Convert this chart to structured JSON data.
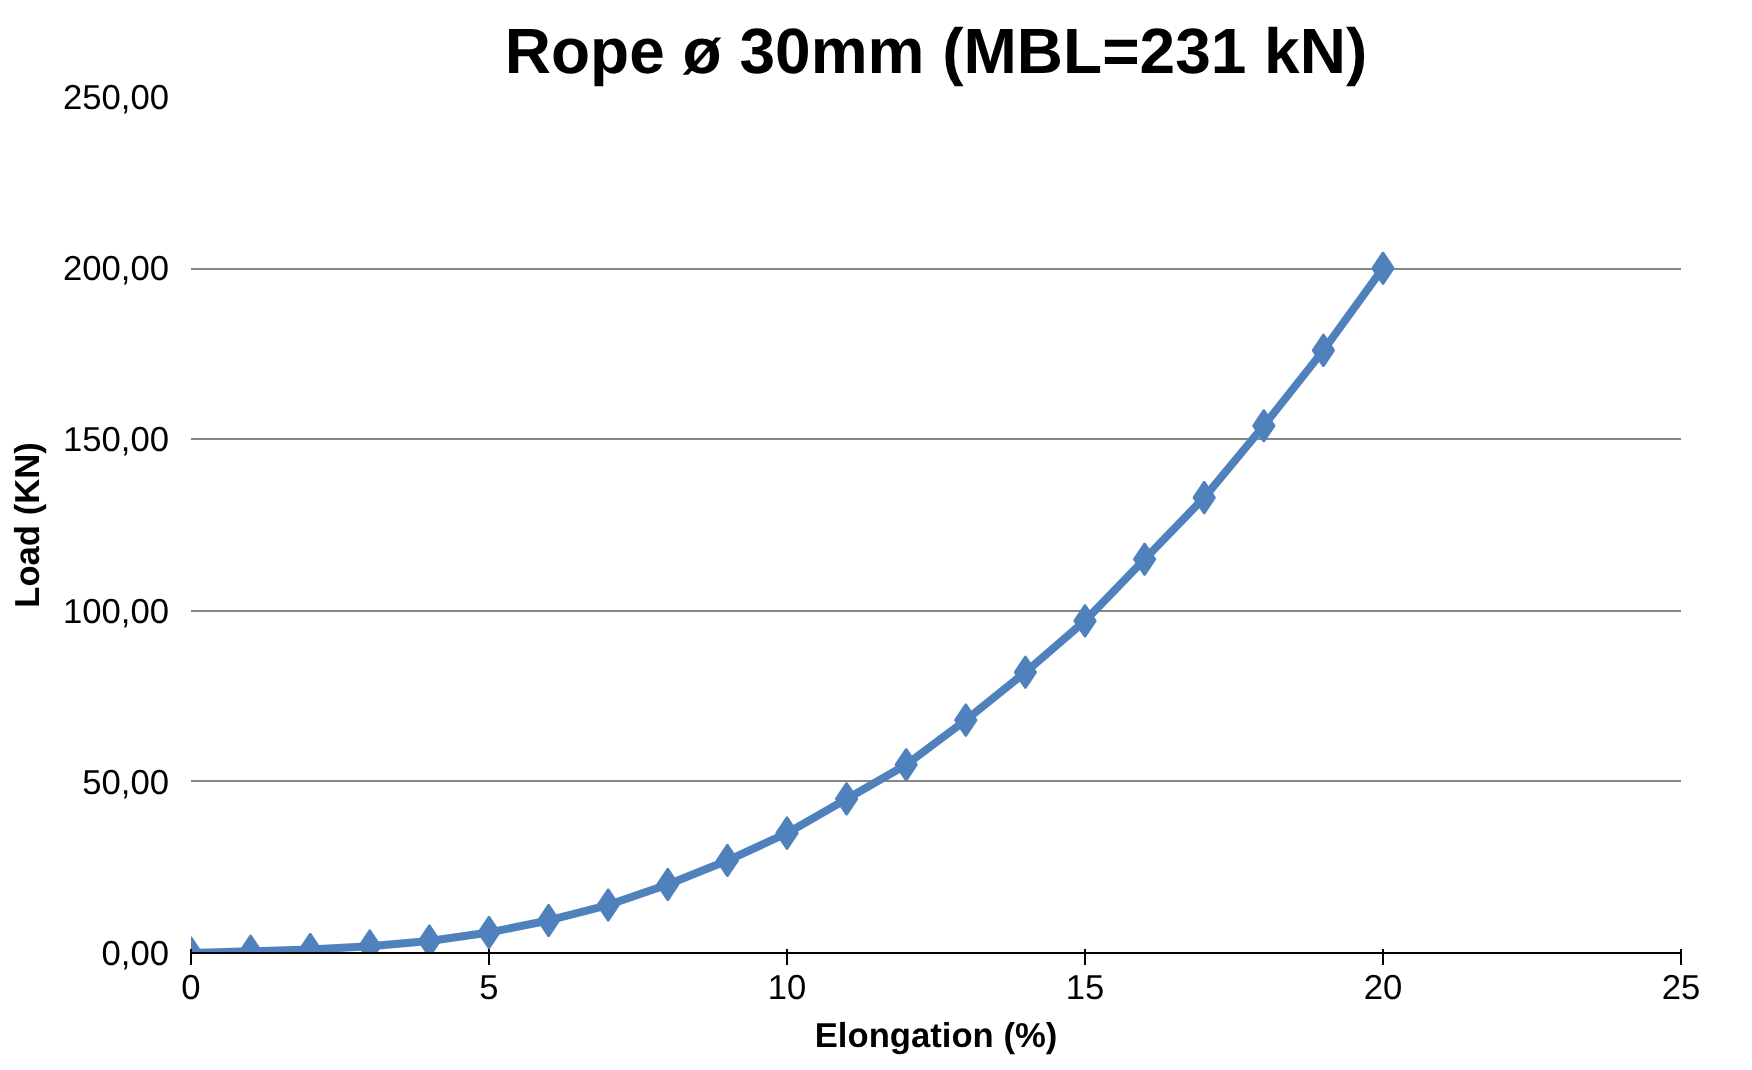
{
  "chart_data": {
    "type": "line",
    "title": "Rope ø 30mm (MBL=231 kN)",
    "xlabel": "Elongation (%)",
    "ylabel": "Load (KN)",
    "x": [
      0,
      1,
      2,
      3,
      4,
      5,
      6,
      7,
      8,
      9,
      10,
      11,
      12,
      13,
      14,
      15,
      16,
      17,
      18,
      19,
      20
    ],
    "series": [
      {
        "color": "#4f81bd",
        "values": [
          0,
          0.5,
          1,
          2,
          3.5,
          6,
          9.5,
          14,
          20,
          27,
          35,
          45,
          55,
          68,
          82,
          97,
          115,
          133,
          154,
          176,
          200
        ]
      }
    ],
    "xlim": [
      0,
      25
    ],
    "xticks": [
      0,
      5,
      10,
      15,
      20,
      25
    ],
    "ylim": [
      0,
      250
    ],
    "yticks": [
      {
        "value": 0,
        "label": "0,00"
      },
      {
        "value": 50,
        "label": "50,00"
      },
      {
        "value": 100,
        "label": "100,00"
      },
      {
        "value": 150,
        "label": "150,00"
      },
      {
        "value": 200,
        "label": "200,00"
      },
      {
        "value": 250,
        "label": "250,00"
      }
    ],
    "grid": "y",
    "marker": "diamond",
    "line_style": "solid"
  }
}
